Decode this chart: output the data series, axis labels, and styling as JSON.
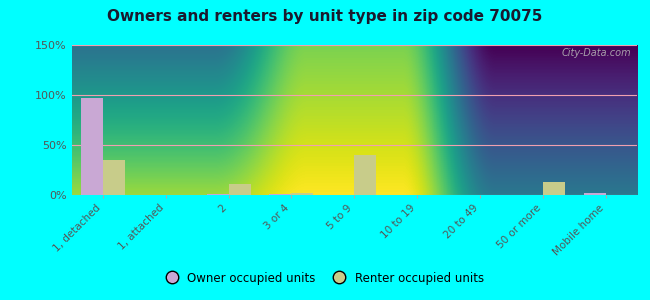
{
  "title": "Owners and renters by unit type in zip code 70075",
  "categories": [
    "1, detached",
    "1, attached",
    "2",
    "3 or 4",
    "5 to 9",
    "10 to 19",
    "20 to 49",
    "50 or more",
    "Mobile home"
  ],
  "owner_values": [
    97,
    0,
    1,
    1,
    0,
    0,
    0,
    0,
    2
  ],
  "renter_values": [
    35,
    0,
    11,
    2,
    40,
    0,
    0,
    13,
    0
  ],
  "owner_color": "#c9a8d4",
  "renter_color": "#c8cc8a",
  "ylim": [
    0,
    150
  ],
  "yticks": [
    0,
    50,
    100,
    150
  ],
  "ytick_labels": [
    "0%",
    "50%",
    "100%",
    "150%"
  ],
  "bg_color": "#edf5dc",
  "outer_bg": "#00ffff",
  "grid_color": "#f0a0b0",
  "watermark": "City-Data.com",
  "legend_owner": "Owner occupied units",
  "legend_renter": "Renter occupied units",
  "bar_width": 0.35,
  "title_color": "#1a1a2e",
  "tick_color": "#555555"
}
